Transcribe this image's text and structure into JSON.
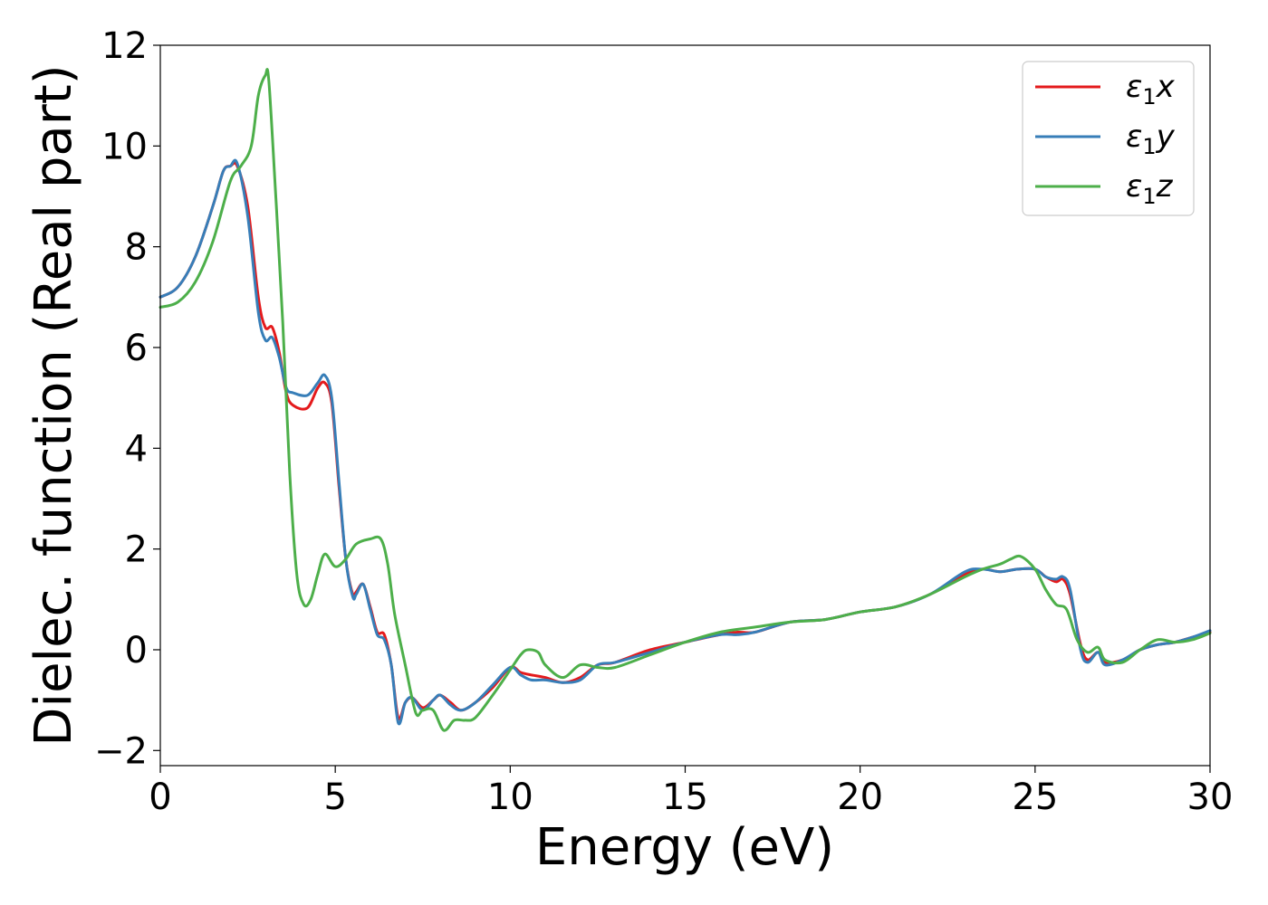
{
  "chart_data": {
    "type": "line",
    "xlabel": "Energy (eV)",
    "ylabel": "Dielec. function (Real part)",
    "xlim": [
      0,
      30
    ],
    "ylim": [
      -2.3,
      12
    ],
    "xticks": [
      0,
      5,
      10,
      15,
      20,
      25,
      30
    ],
    "yticks": [
      -2,
      0,
      2,
      4,
      6,
      8,
      10,
      12
    ],
    "xtick_labels": [
      "0",
      "5",
      "10",
      "15",
      "20",
      "25",
      "30"
    ],
    "ytick_labels": [
      "−2",
      "0",
      "2",
      "4",
      "6",
      "8",
      "10",
      "12"
    ],
    "grid": false,
    "legend_position": "top-right",
    "series": [
      {
        "name": "ε₁x",
        "label_base": "ε",
        "label_sub": "1",
        "label_var": "x",
        "color": "#e41a1c",
        "x": [
          0,
          0.5,
          1.0,
          1.5,
          1.8,
          2.0,
          2.2,
          2.5,
          2.8,
          3.0,
          3.2,
          3.4,
          3.6,
          3.8,
          4.2,
          4.5,
          4.7,
          4.9,
          5.1,
          5.3,
          5.5,
          5.6,
          5.8,
          6.0,
          6.2,
          6.4,
          6.6,
          6.8,
          7.0,
          7.2,
          7.5,
          7.8,
          8.0,
          8.3,
          8.6,
          9.0,
          9.5,
          10.0,
          10.3,
          10.6,
          11.0,
          11.5,
          12.0,
          12.5,
          13.0,
          14.0,
          15.0,
          16.0,
          16.5,
          17.0,
          18.0,
          19.0,
          20.0,
          21.0,
          22.0,
          23.0,
          23.5,
          24.0,
          24.5,
          25.0,
          25.3,
          25.6,
          25.8,
          26.0,
          26.3,
          26.5,
          26.8,
          27.0,
          27.5,
          28.0,
          28.5,
          29.0,
          29.5,
          30.0
        ],
        "y": [
          7.0,
          7.2,
          7.8,
          8.8,
          9.5,
          9.6,
          9.6,
          8.8,
          7.0,
          6.4,
          6.4,
          5.9,
          5.1,
          4.85,
          4.8,
          5.2,
          5.3,
          4.9,
          3.3,
          1.8,
          1.1,
          1.15,
          1.3,
          0.85,
          0.35,
          0.3,
          -0.3,
          -1.35,
          -1.05,
          -0.95,
          -1.15,
          -1.0,
          -0.9,
          -1.05,
          -1.2,
          -1.05,
          -0.75,
          -0.35,
          -0.45,
          -0.5,
          -0.55,
          -0.65,
          -0.55,
          -0.3,
          -0.25,
          0.0,
          0.15,
          0.3,
          0.35,
          0.35,
          0.55,
          0.6,
          0.75,
          0.85,
          1.1,
          1.5,
          1.6,
          1.55,
          1.6,
          1.6,
          1.45,
          1.35,
          1.4,
          1.1,
          0.1,
          -0.2,
          -0.05,
          -0.25,
          -0.2,
          0.0,
          0.1,
          0.15,
          0.25,
          0.35
        ]
      },
      {
        "name": "ε₁y",
        "label_base": "ε",
        "label_sub": "1",
        "label_var": "y",
        "color": "#377eb8",
        "x": [
          0,
          0.5,
          1.0,
          1.5,
          1.8,
          2.0,
          2.2,
          2.5,
          2.8,
          3.0,
          3.2,
          3.4,
          3.6,
          3.8,
          4.2,
          4.5,
          4.7,
          4.9,
          5.1,
          5.3,
          5.5,
          5.6,
          5.8,
          6.0,
          6.2,
          6.4,
          6.6,
          6.8,
          7.0,
          7.2,
          7.5,
          7.8,
          8.0,
          8.3,
          8.6,
          9.0,
          9.5,
          10.0,
          10.3,
          10.6,
          11.0,
          11.5,
          12.0,
          12.5,
          13.0,
          14.0,
          15.0,
          16.0,
          16.5,
          17.0,
          18.0,
          19.0,
          20.0,
          21.0,
          22.0,
          23.0,
          23.5,
          24.0,
          24.5,
          25.0,
          25.3,
          25.6,
          25.8,
          26.0,
          26.3,
          26.5,
          26.8,
          27.0,
          27.5,
          28.0,
          28.5,
          29.0,
          29.5,
          30.0
        ],
        "y": [
          7.0,
          7.2,
          7.8,
          8.8,
          9.5,
          9.6,
          9.65,
          8.6,
          6.7,
          6.15,
          6.2,
          5.8,
          5.2,
          5.1,
          5.05,
          5.3,
          5.45,
          5.0,
          3.4,
          1.8,
          1.05,
          1.1,
          1.3,
          0.8,
          0.3,
          0.2,
          -0.3,
          -1.45,
          -1.05,
          -0.95,
          -1.2,
          -1.0,
          -0.9,
          -1.1,
          -1.2,
          -1.05,
          -0.7,
          -0.35,
          -0.5,
          -0.6,
          -0.6,
          -0.65,
          -0.6,
          -0.3,
          -0.25,
          -0.05,
          0.15,
          0.3,
          0.3,
          0.35,
          0.55,
          0.6,
          0.75,
          0.85,
          1.1,
          1.55,
          1.6,
          1.55,
          1.6,
          1.6,
          1.45,
          1.4,
          1.45,
          1.2,
          0.0,
          -0.25,
          -0.05,
          -0.3,
          -0.2,
          0.0,
          0.1,
          0.15,
          0.25,
          0.38
        ]
      },
      {
        "name": "ε₁z",
        "label_base": "ε",
        "label_sub": "1",
        "label_var": "z",
        "color": "#4daf4a",
        "x": [
          0,
          0.5,
          1.0,
          1.5,
          2.0,
          2.3,
          2.6,
          2.8,
          3.0,
          3.1,
          3.3,
          3.5,
          3.7,
          3.9,
          4.1,
          4.3,
          4.5,
          4.7,
          5.0,
          5.3,
          5.6,
          6.0,
          6.3,
          6.5,
          6.7,
          7.0,
          7.3,
          7.5,
          7.8,
          8.1,
          8.4,
          8.7,
          9.0,
          9.5,
          10.0,
          10.3,
          10.5,
          10.8,
          11.0,
          11.5,
          12.0,
          12.5,
          13.0,
          14.0,
          15.0,
          16.0,
          17.0,
          18.0,
          19.0,
          20.0,
          21.0,
          22.0,
          23.0,
          23.5,
          24.0,
          24.3,
          24.6,
          25.0,
          25.3,
          25.6,
          25.9,
          26.2,
          26.5,
          26.8,
          27.0,
          27.5,
          28.0,
          28.5,
          29.0,
          29.5,
          30.0
        ],
        "y": [
          6.8,
          6.9,
          7.3,
          8.1,
          9.3,
          9.6,
          10.0,
          11.0,
          11.4,
          11.3,
          9.0,
          6.5,
          3.5,
          1.5,
          0.9,
          1.0,
          1.5,
          1.9,
          1.65,
          1.8,
          2.1,
          2.2,
          2.2,
          1.7,
          0.7,
          -0.3,
          -1.25,
          -1.2,
          -1.2,
          -1.6,
          -1.4,
          -1.4,
          -1.35,
          -0.9,
          -0.4,
          -0.1,
          0.0,
          -0.05,
          -0.3,
          -0.55,
          -0.3,
          -0.35,
          -0.35,
          -0.1,
          0.15,
          0.35,
          0.45,
          0.55,
          0.6,
          0.75,
          0.85,
          1.1,
          1.45,
          1.6,
          1.7,
          1.8,
          1.85,
          1.6,
          1.2,
          0.9,
          0.8,
          0.2,
          -0.05,
          0.05,
          -0.2,
          -0.25,
          0.0,
          0.2,
          0.15,
          0.2,
          0.33
        ]
      }
    ]
  }
}
